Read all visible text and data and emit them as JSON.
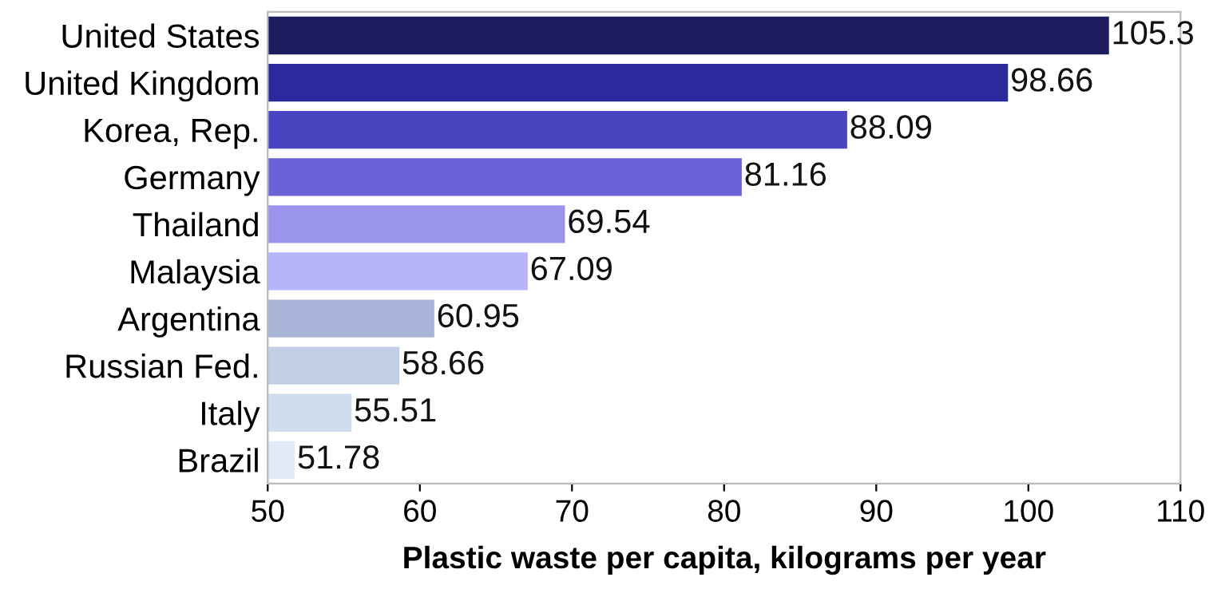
{
  "chart_data": {
    "type": "bar",
    "orientation": "horizontal",
    "xlabel": "Plastic waste per capita, kilograms per year",
    "categories": [
      "United States",
      "United Kingdom",
      "Korea, Rep.",
      "Germany",
      "Thailand",
      "Malaysia",
      "Argentina",
      "Russian Fed.",
      "Italy",
      "Brazil"
    ],
    "values": [
      105.3,
      98.66,
      88.09,
      81.16,
      69.54,
      67.09,
      60.95,
      58.66,
      55.51,
      51.78
    ],
    "colors": [
      "#1c1c5e",
      "#2a2a9c",
      "#4a44c0",
      "#6a62d6",
      "#9a94ec",
      "#b8b4fa",
      "#a8b4d8",
      "#c2cfe6",
      "#cfdeee",
      "#e3ebf8"
    ],
    "xlim": [
      50,
      110
    ],
    "xticks": [
      50,
      60,
      70,
      80,
      90,
      100,
      110
    ],
    "data_labels": true,
    "grid": false
  }
}
